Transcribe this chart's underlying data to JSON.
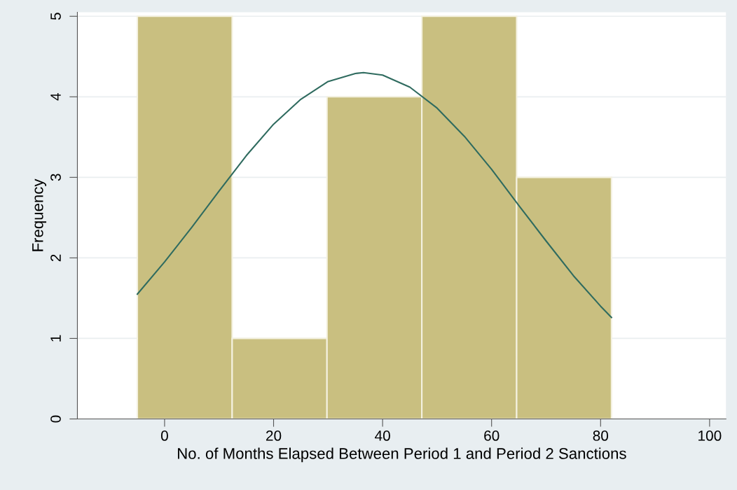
{
  "chart_data": {
    "type": "histogram",
    "xlabel": "No. of Months Elapsed Between Period 1 and Period 2 Sanctions",
    "ylabel": "Frequency",
    "bins": [
      -5,
      12.4,
      29.8,
      47.2,
      64.6,
      82
    ],
    "values": [
      5,
      1,
      4,
      5,
      3
    ],
    "color": "#c9bf80",
    "series": [
      {
        "type": "line",
        "color": "#2f6b5f",
        "x": [
          -5,
          0,
          5,
          10,
          15,
          20,
          25,
          30,
          35,
          36.5,
          40,
          45,
          50,
          55,
          60,
          65,
          70,
          75,
          80,
          82
        ],
        "values": [
          1.55,
          1.95,
          2.38,
          2.83,
          3.27,
          3.66,
          3.97,
          4.19,
          4.29,
          4.3,
          4.27,
          4.12,
          3.86,
          3.51,
          3.1,
          2.65,
          2.21,
          1.78,
          1.4,
          1.26
        ]
      }
    ],
    "xlim": [
      -16,
      103
    ],
    "xticks": [
      0,
      20,
      40,
      60,
      80,
      100
    ],
    "ylim": [
      0,
      5.05
    ],
    "yticks": [
      0,
      1,
      2,
      3,
      4,
      5
    ],
    "grid": "y",
    "legend": false,
    "marker": "none",
    "line_style": "solid"
  }
}
